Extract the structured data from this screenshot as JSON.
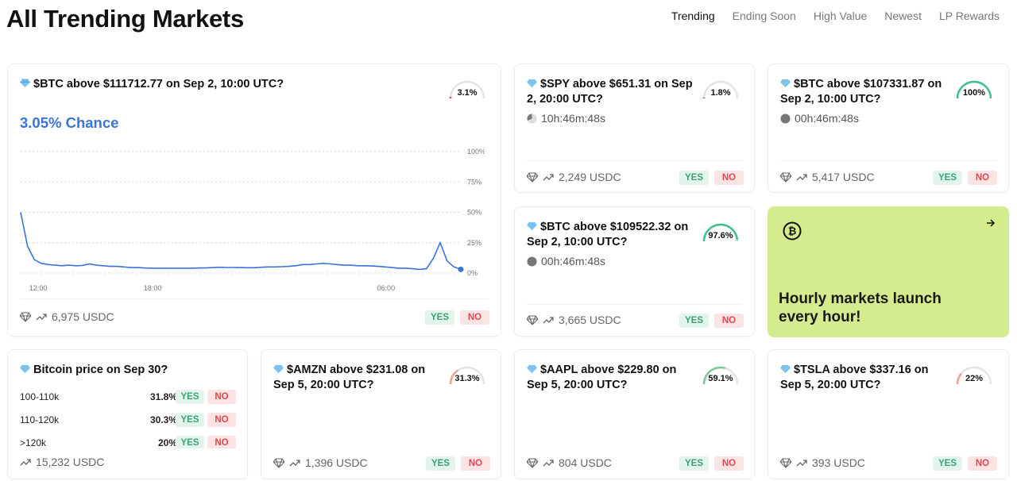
{
  "page": {
    "title": "All Trending Markets"
  },
  "tabs": [
    {
      "label": "Trending",
      "active": true
    },
    {
      "label": "Ending Soon",
      "active": false
    },
    {
      "label": "High Value",
      "active": false
    },
    {
      "label": "Newest",
      "active": false
    },
    {
      "label": "LP Rewards",
      "active": false
    }
  ],
  "colors": {
    "accent": "#3a74d8",
    "yes_bg": "#e3f4ec",
    "yes_text": "#3aa374",
    "no_bg": "#fde4e4",
    "no_text": "#e0474f",
    "promo_bg": "#d4ec8d"
  },
  "featured": {
    "question": "$BTC above $111712.77 on Sep 2, 10:00 UTC?",
    "gauge_label": "3.1%",
    "gauge_value": 3.1,
    "chance_label": "3.05% Chance",
    "volume": "6,975 USDC",
    "yes": "YES",
    "no": "NO"
  },
  "chart_data": {
    "type": "line",
    "title": "",
    "xlabel": "",
    "ylabel": "",
    "ylim": [
      0,
      100
    ],
    "y_ticks": [
      "100%",
      "75%",
      "50%",
      "25%",
      "0%"
    ],
    "x_ticks": [
      "12:00",
      "18:00",
      "06:00"
    ],
    "grid": true,
    "series": [
      {
        "values": [
          50,
          22,
          11,
          8,
          7,
          6.5,
          6,
          6.5,
          6,
          6.3,
          7.5,
          6.5,
          6,
          5.5,
          5.5,
          5,
          4.5,
          4.5,
          4.2,
          4,
          4,
          4,
          4,
          4,
          4,
          4,
          4.2,
          4.2,
          4.5,
          4.8,
          4.6,
          4.6,
          4.5,
          4.4,
          4.4,
          4.8,
          5,
          5,
          5.2,
          5.5,
          6,
          7,
          7,
          7.5,
          8,
          7.5,
          7,
          6.5,
          6.5,
          6,
          6,
          5.8,
          5.5,
          5,
          4.5,
          4,
          4,
          3.5,
          3,
          3.5,
          12,
          25,
          10,
          5,
          3.05
        ]
      }
    ]
  },
  "markets": [
    {
      "question": "$SPY above $651.31 on Sep 2, 20:00 UTC?",
      "gauge_label": "1.8%",
      "gauge_value": 1.8,
      "timer": "10h:46m:48s",
      "volume": "2,249 USDC",
      "yes": "YES",
      "no": "NO"
    },
    {
      "question": "$BTC above $107331.87 on Sep 2, 10:00 UTC?",
      "gauge_label": "100%",
      "gauge_value": 100,
      "timer": "00h:46m:48s",
      "volume": "5,417 USDC",
      "yes": "YES",
      "no": "NO"
    },
    {
      "question": "$BTC above $109522.32 on Sep 2, 10:00 UTC?",
      "gauge_label": "97.6%",
      "gauge_value": 97.6,
      "timer": "00h:46m:48s",
      "volume": "3,665 USDC",
      "yes": "YES",
      "no": "NO"
    },
    {
      "question": "$AMZN above $231.08 on Sep 5, 20:00 UTC?",
      "gauge_label": "31.3%",
      "gauge_value": 31.3,
      "volume": "1,396 USDC",
      "yes": "YES",
      "no": "NO"
    },
    {
      "question": "$AAPL above $229.80 on Sep 5, 20:00 UTC?",
      "gauge_label": "59.1%",
      "gauge_value": 59.1,
      "volume": "804 USDC",
      "yes": "YES",
      "no": "NO"
    },
    {
      "question": "$TSLA above $337.16 on Sep 5, 20:00 UTC?",
      "gauge_label": "22%",
      "gauge_value": 22,
      "volume": "393 USDC",
      "yes": "YES",
      "no": "NO"
    }
  ],
  "multi": {
    "question": "Bitcoin price on Sep 30?",
    "rows": [
      {
        "label": "100-110k",
        "pct": "31.8%",
        "yes": "YES",
        "no": "NO"
      },
      {
        "label": "110-120k",
        "pct": "30.3%",
        "yes": "YES",
        "no": "NO"
      },
      {
        "label": ">120k",
        "pct": "20%",
        "yes": "YES",
        "no": "NO"
      }
    ],
    "volume": "15,232 USDC"
  },
  "promo": {
    "title": "Hourly markets launch every hour!",
    "icon": "bitcoin-icon",
    "arrow_icon": "arrow-right-icon"
  }
}
